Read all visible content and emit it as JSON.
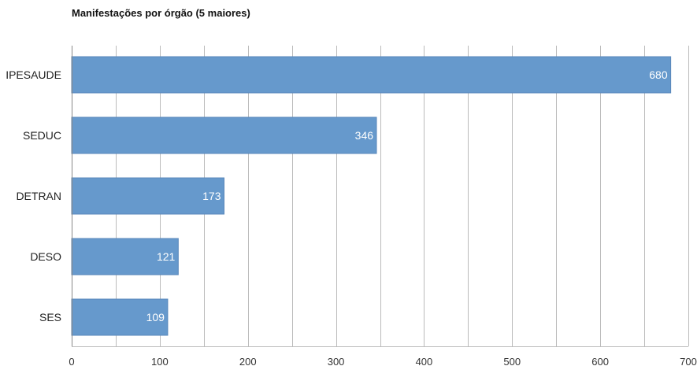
{
  "chart_data": {
    "type": "bar",
    "orientation": "horizontal",
    "title": "Manifestações por órgão (5 maiores)",
    "categories": [
      "IPESAUDE",
      "SEDUC",
      "DETRAN",
      "DESO",
      "SES"
    ],
    "values": [
      680,
      346,
      173,
      121,
      109
    ],
    "data_labels": [
      "680",
      "346",
      "173",
      "121",
      "109"
    ],
    "xlim": [
      0,
      700
    ],
    "x_ticks": [
      0,
      100,
      200,
      300,
      400,
      500,
      600,
      700
    ],
    "x_tick_labels": [
      "0",
      "100",
      "200",
      "300",
      "400",
      "500",
      "600",
      "700"
    ],
    "minor_grid_step": 50,
    "grid": true,
    "legend": "none",
    "bar_color": "#6699cc",
    "bar_edge_color": "#5a88bb",
    "grid_color": "#bbbbbb",
    "axis_color": "#888888"
  }
}
